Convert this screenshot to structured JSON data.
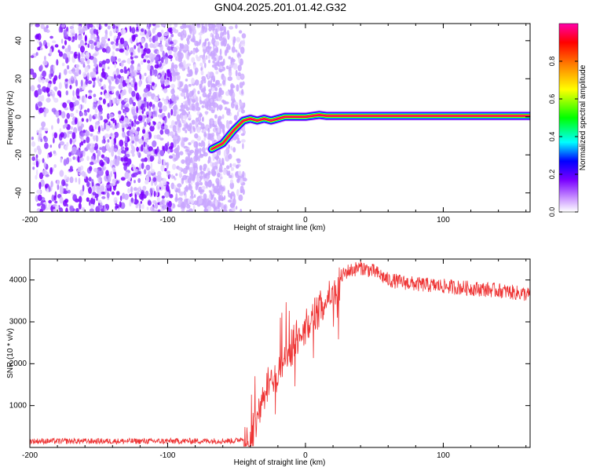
{
  "chart_data": [
    {
      "type": "heatmap",
      "title": "GN04.2025.201.01.42.G32",
      "xlabel": "Height of straight line (km)",
      "ylabel": "Frequency (Hz)",
      "xlim": [
        -200,
        163
      ],
      "ylim": [
        -50,
        49
      ],
      "x_ticks": [
        -200,
        -100,
        0,
        100
      ],
      "y_ticks": [
        -40,
        -20,
        0,
        20,
        40
      ],
      "colorbar": {
        "label": "Normalized spectral amplitude",
        "range": [
          0,
          1
        ],
        "ticks": [
          0.0,
          0.2,
          0.4,
          0.6,
          0.8
        ],
        "colors": [
          "#ffffff",
          "#cc99ff",
          "#7a00ff",
          "#0000ff",
          "#00ffff",
          "#00ff00",
          "#ffff00",
          "#ff8000",
          "#ff0000",
          "#ff00aa"
        ]
      },
      "noise_region_x": [
        -200,
        -52
      ],
      "signal_trace": {
        "x": [
          -68,
          -60,
          -52,
          -45,
          -40,
          -35,
          -30,
          -25,
          -20,
          -15,
          -10,
          0,
          10,
          15,
          30,
          60,
          90,
          100,
          163
        ],
        "y": [
          -17,
          -14,
          -7,
          -2,
          -1,
          -2,
          -1,
          -2,
          -1,
          0,
          0,
          0,
          1,
          0.5,
          0.5,
          0.5,
          0.5,
          0.5,
          0.5
        ]
      }
    },
    {
      "type": "line",
      "xlabel": "Height of straight line (km)",
      "ylabel": "SNR (10 * v/v)",
      "xlim": [
        -200,
        163
      ],
      "ylim": [
        0,
        4500
      ],
      "x_ticks": [
        -200,
        -100,
        0,
        100
      ],
      "y_ticks": [
        1000,
        2000,
        3000,
        4000
      ],
      "series_color": "#ee3333",
      "envelope": {
        "x": [
          -200,
          -150,
          -100,
          -50,
          -40,
          -35,
          -30,
          -25,
          -20,
          -15,
          -10,
          -5,
          0,
          10,
          20,
          30,
          40,
          50,
          60,
          80,
          100,
          120,
          140,
          163
        ],
        "y": [
          150,
          150,
          150,
          160,
          300,
          900,
          1400,
          1700,
          1900,
          2200,
          2500,
          2800,
          3000,
          3400,
          3900,
          4200,
          4300,
          4200,
          4000,
          3900,
          3850,
          3800,
          3750,
          3650
        ]
      }
    }
  ]
}
